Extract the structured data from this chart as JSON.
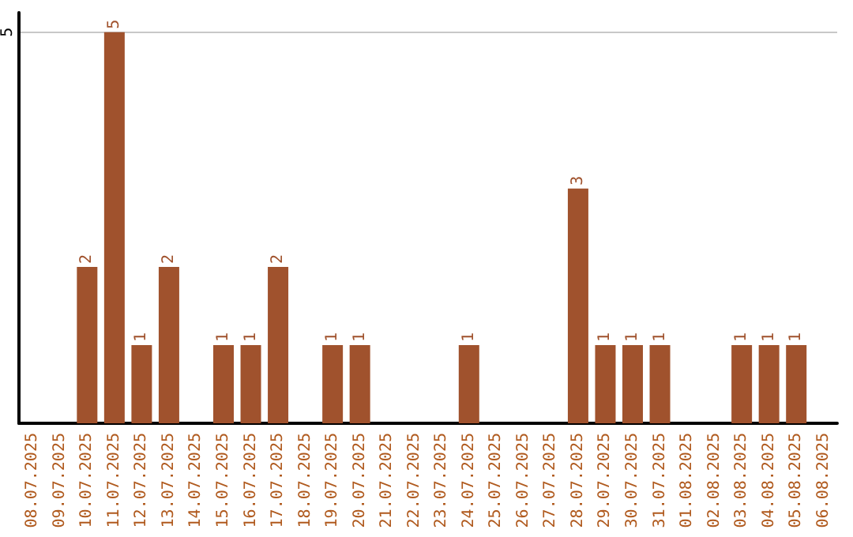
{
  "chart_data": {
    "type": "bar",
    "categories": [
      "08.07.2025",
      "09.07.2025",
      "10.07.2025",
      "11.07.2025",
      "12.07.2025",
      "13.07.2025",
      "14.07.2025",
      "15.07.2025",
      "16.07.2025",
      "17.07.2025",
      "18.07.2025",
      "19.07.2025",
      "20.07.2025",
      "21.07.2025",
      "22.07.2025",
      "23.07.2025",
      "24.07.2025",
      "25.07.2025",
      "26.07.2025",
      "27.07.2025",
      "28.07.2025",
      "29.07.2025",
      "30.07.2025",
      "31.07.2025",
      "01.08.2025",
      "02.08.2025",
      "03.08.2025",
      "04.08.2025",
      "05.08.2025",
      "06.08.2025"
    ],
    "values": [
      0,
      0,
      2,
      5,
      1,
      2,
      0,
      1,
      1,
      2,
      0,
      1,
      1,
      0,
      0,
      0,
      1,
      0,
      0,
      0,
      3,
      1,
      1,
      1,
      0,
      0,
      1,
      1,
      1,
      0
    ],
    "value_labels": [
      null,
      null,
      "2",
      "5",
      "1",
      "2",
      null,
      "1",
      "1",
      "2",
      null,
      "1",
      "1",
      null,
      null,
      null,
      "1",
      null,
      null,
      null,
      "3",
      "1",
      "1",
      "1",
      null,
      null,
      "1",
      "1",
      "1",
      null
    ],
    "color": "#a0522d",
    "ylim": [
      0,
      5.25
    ],
    "yticks": [
      5
    ],
    "grid": "y"
  }
}
